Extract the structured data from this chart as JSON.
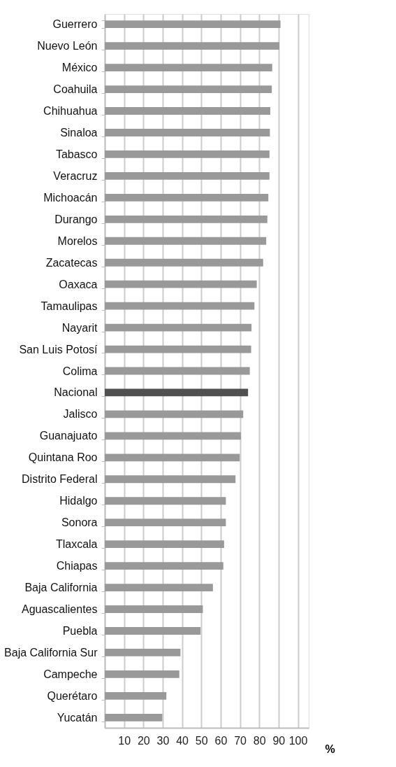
{
  "chart_data": {
    "type": "bar",
    "orientation": "horizontal",
    "xlabel": "%",
    "categories": [
      "Guerrero",
      "Nuevo León",
      "México",
      "Coahuila",
      "Chihuahua",
      "Sinaloa",
      "Tabasco",
      "Veracruz",
      "Michoacán",
      "Durango",
      "Morelos",
      "Zacatecas",
      "Oaxaca",
      "Tamaulipas",
      "Nayarit",
      "San Luis Potosí",
      "Colima",
      "Nacional",
      "Jalisco",
      "Guanajuato",
      "Quintana Roo",
      "Distrito Federal",
      "Hidalgo",
      "Sonora",
      "Tlaxcala",
      "Chiapas",
      "Baja California",
      "Aguascalientes",
      "Puebla",
      "Baja California Sur",
      "Campeche",
      "Querétaro",
      "Yucatán"
    ],
    "values": [
      91.0,
      90.4,
      86.7,
      86.5,
      85.7,
      85.5,
      85.3,
      85.3,
      84.7,
      84.2,
      83.6,
      82.0,
      78.7,
      77.5,
      76.0,
      75.8,
      75.1,
      74.2,
      71.7,
      70.5,
      69.9,
      67.7,
      62.7,
      62.7,
      61.8,
      61.4,
      56.0,
      50.8,
      49.6,
      39.2,
      38.6,
      31.9,
      29.8
    ],
    "colors": [
      "#999999",
      "#999999",
      "#999999",
      "#999999",
      "#999999",
      "#999999",
      "#999999",
      "#999999",
      "#999999",
      "#999999",
      "#999999",
      "#999999",
      "#999999",
      "#999999",
      "#999999",
      "#999999",
      "#999999",
      "#505050",
      "#999999",
      "#999999",
      "#999999",
      "#999999",
      "#999999",
      "#999999",
      "#999999",
      "#999999",
      "#999999",
      "#999999",
      "#999999",
      "#999999",
      "#999999",
      "#999999",
      "#999999"
    ],
    "xlim": [
      0,
      105.6
    ],
    "xticks": [
      10,
      20,
      30,
      40,
      50,
      60,
      70,
      80,
      90,
      100
    ],
    "grid": "x"
  }
}
